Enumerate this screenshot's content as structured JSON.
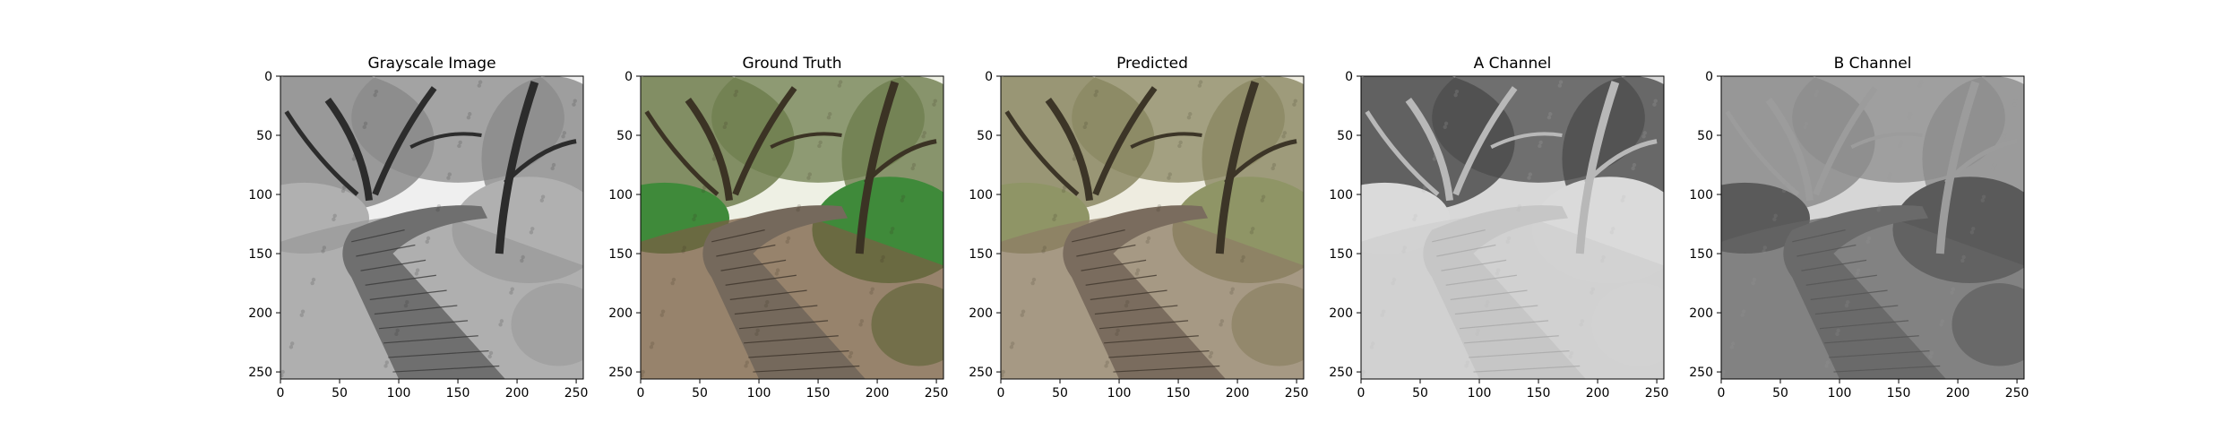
{
  "figure": {
    "panels": [
      {
        "id": "grayscale",
        "title": "Grayscale Image",
        "content": "grayscale-forest-boardwalk-photo",
        "palette": {
          "sky": "#efefef",
          "canopy": "#8a8a8a",
          "foliage": "#b0b0b0",
          "trunk": "#2c2c2c",
          "path": "#6f6f6f",
          "plank_line": "#3a3a3a",
          "ground": "#9a9a9a"
        },
        "xlim": [
          0,
          256
        ],
        "ylim": [
          256,
          0
        ],
        "xticks": [
          "0",
          "50",
          "100",
          "150",
          "200",
          "250"
        ],
        "yticks": [
          "0",
          "50",
          "100",
          "150",
          "200",
          "250"
        ]
      },
      {
        "id": "ground-truth",
        "title": "Ground Truth",
        "content": "color-forest-boardwalk-photo",
        "palette": {
          "sky": "#eef0e4",
          "canopy": "#6e7d4e",
          "foliage": "#3f8a3a",
          "trunk": "#3b3324",
          "path": "#75695c",
          "plank_line": "#3d342b",
          "ground": "#7a5f44"
        },
        "xlim": [
          0,
          256
        ],
        "ylim": [
          256,
          0
        ],
        "xticks": [
          "0",
          "50",
          "100",
          "150",
          "200",
          "250"
        ],
        "yticks": [
          "0",
          "50",
          "100",
          "150",
          "200",
          "250"
        ]
      },
      {
        "id": "predicted",
        "title": "Predicted",
        "content": "predicted-colorized-forest-boardwalk-photo",
        "palette": {
          "sky": "#eeece0",
          "canopy": "#8a8761",
          "foliage": "#8f9566",
          "trunk": "#3c3527",
          "path": "#7a6c5e",
          "plank_line": "#40372d",
          "ground": "#8d7d66"
        },
        "xlim": [
          0,
          256
        ],
        "ylim": [
          256,
          0
        ],
        "xticks": [
          "0",
          "50",
          "100",
          "150",
          "200",
          "250"
        ],
        "yticks": [
          "0",
          "50",
          "100",
          "150",
          "200",
          "250"
        ]
      },
      {
        "id": "a-channel",
        "title": "A Channel",
        "content": "a-channel-grayscale-map",
        "palette": {
          "sky": "#d8d8d8",
          "canopy": "#4c4c4c",
          "foliage": "#dadada",
          "trunk": "#b8b8b8",
          "path": "#c6c6c6",
          "plank_line": "#a9a9a9",
          "ground": "#cfcfcf"
        },
        "xlim": [
          0,
          256
        ],
        "ylim": [
          256,
          0
        ],
        "xticks": [
          "0",
          "50",
          "100",
          "150",
          "200",
          "250"
        ],
        "yticks": [
          "0",
          "50",
          "100",
          "150",
          "200",
          "250"
        ]
      },
      {
        "id": "b-channel",
        "title": "B Channel",
        "content": "b-channel-grayscale-map",
        "palette": {
          "sky": "#d6d6d6",
          "canopy": "#8c8c8c",
          "foliage": "#5a5a5a",
          "trunk": "#9c9c9c",
          "path": "#6a6a6a",
          "plank_line": "#555555",
          "ground": "#666666"
        },
        "xlim": [
          0,
          256
        ],
        "ylim": [
          256,
          0
        ],
        "xticks": [
          "0",
          "50",
          "100",
          "150",
          "200",
          "250"
        ],
        "yticks": [
          "0",
          "50",
          "100",
          "150",
          "200",
          "250"
        ]
      }
    ]
  }
}
